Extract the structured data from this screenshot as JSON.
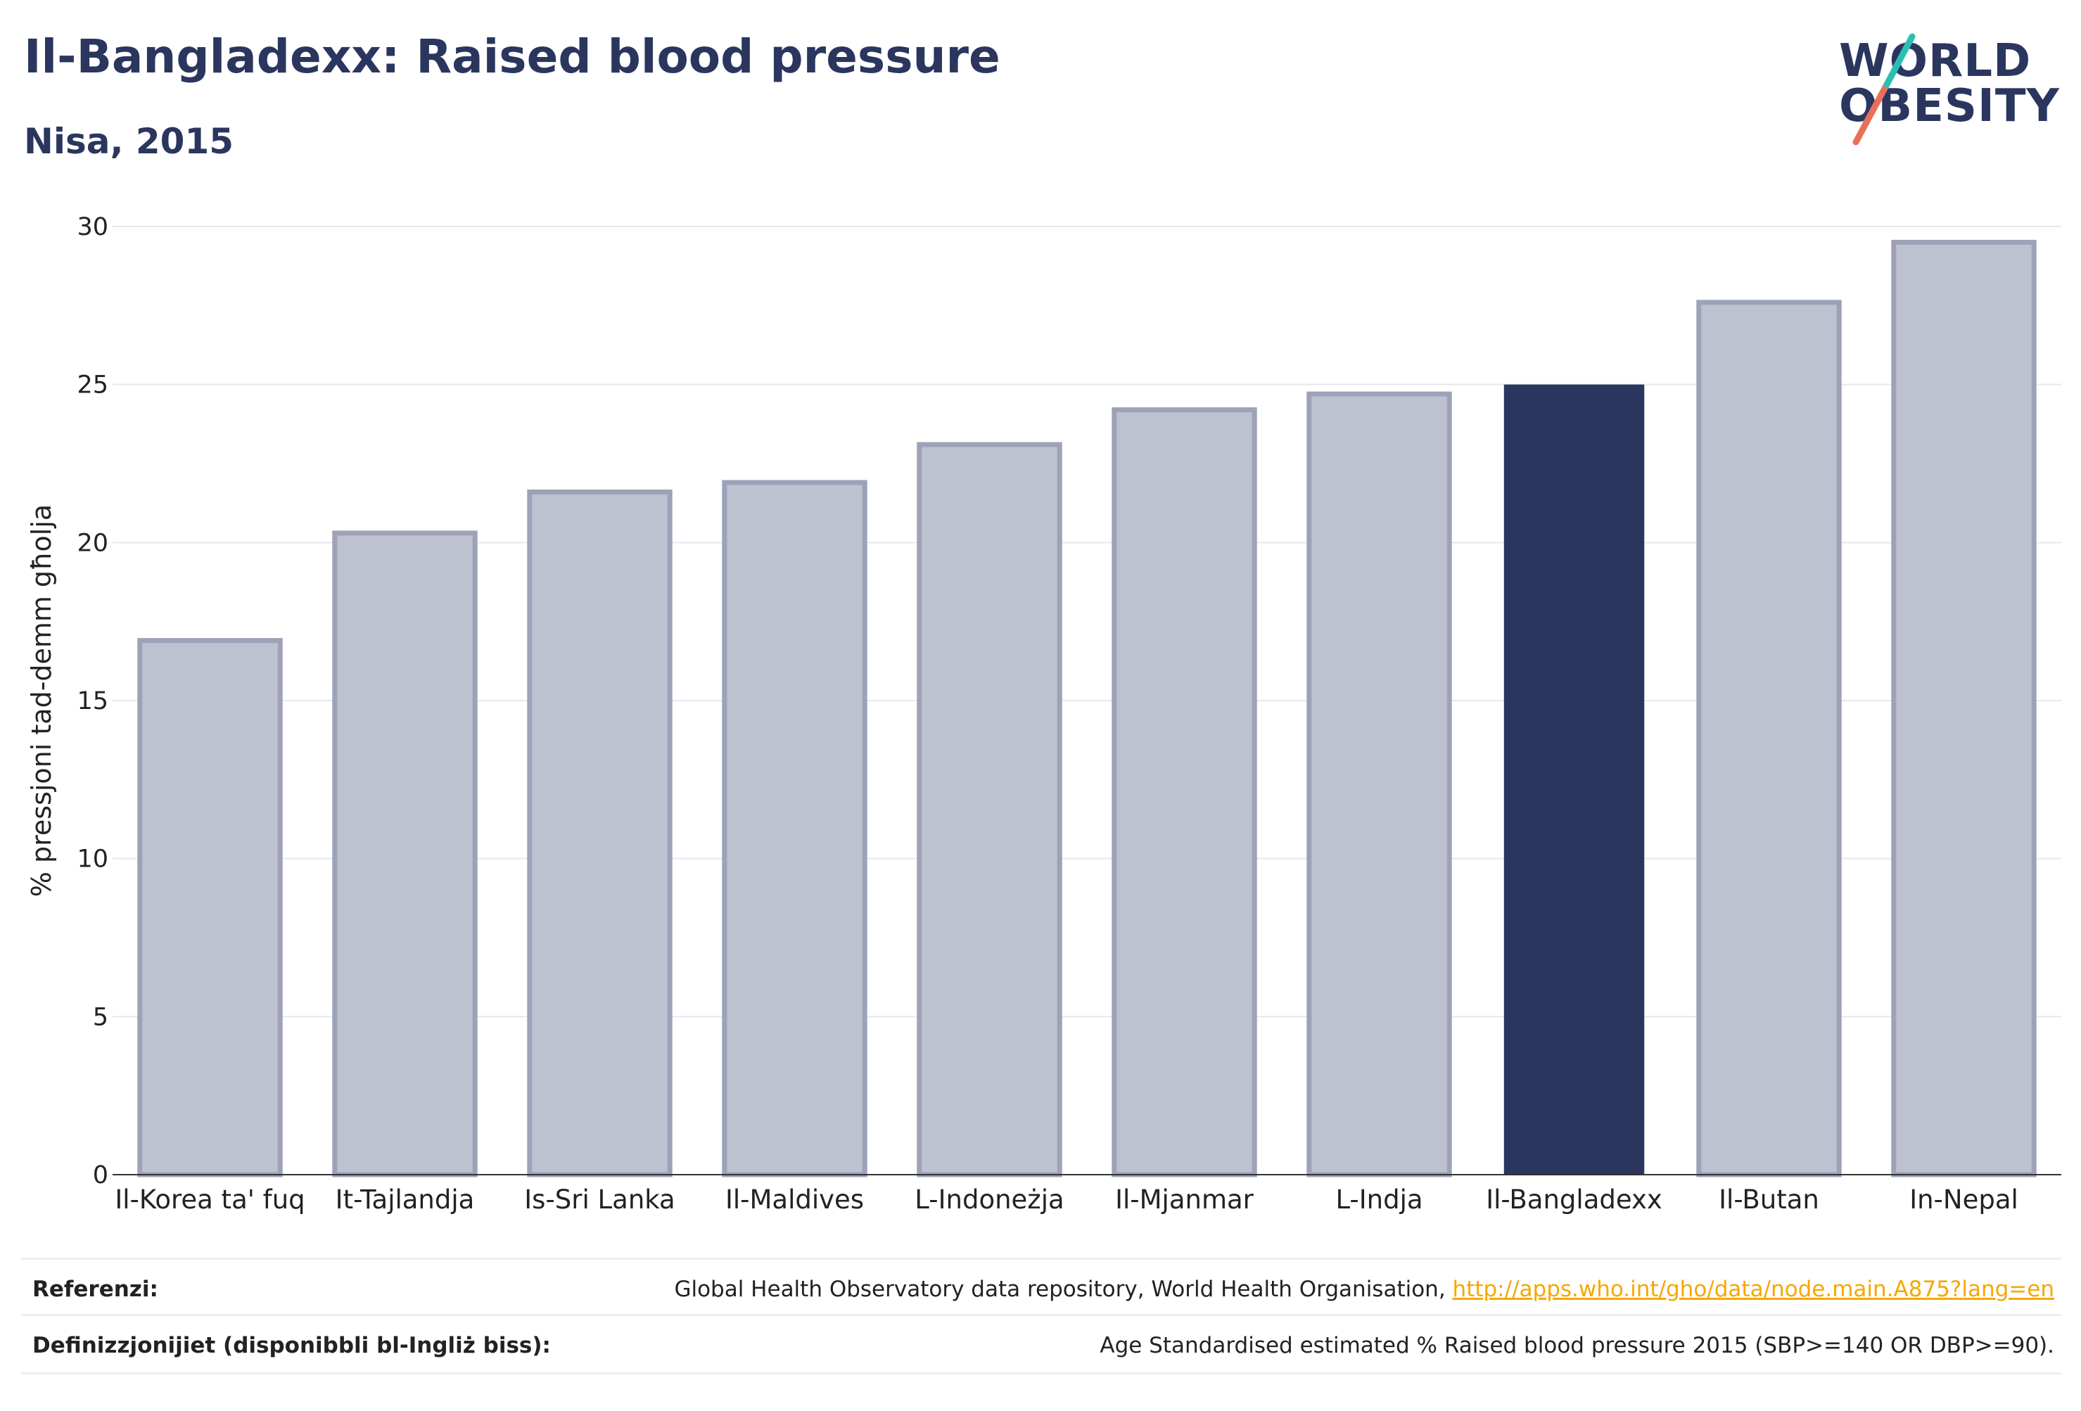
{
  "header": {
    "title": "Il-Bangladexx: Raised blood pressure",
    "subtitle": "Nisa, 2015"
  },
  "logo": {
    "line1": "WORLD",
    "line2": "OBESITY",
    "text_color": "#2a365e",
    "slash_colors": [
      "#e8705a",
      "#2bbfb3"
    ]
  },
  "chart_data": {
    "type": "bar",
    "title": "",
    "xlabel": "",
    "ylabel": "% pressjoni tad-demm għolja",
    "ylim": [
      0,
      30
    ],
    "yticks": [
      0,
      5,
      10,
      15,
      20,
      25,
      30
    ],
    "grid": true,
    "categories": [
      "Il-Korea ta' fuq",
      "It-Tajlandja",
      "Is-Sri Lanka",
      "Il-Maldives",
      "L-Indoneżja",
      "Il-Mjanmar",
      "L-Indja",
      "Il-Bangladexx",
      "Il-Butan",
      "In-Nepal"
    ],
    "values": [
      16.9,
      20.3,
      21.6,
      21.9,
      23.1,
      24.2,
      24.7,
      25.0,
      27.6,
      29.5
    ],
    "highlight": "Il-Bangladexx",
    "colors": {
      "bar": "#bec1cf",
      "bar_border": "#9da2b8",
      "highlight": "#2a365e",
      "axis_text": "#222222",
      "grid": "#e6e8ee"
    }
  },
  "footer": {
    "references_label": "Referenzi:",
    "references_text": "Global Health Observatory data repository, World Health Organisation, ",
    "references_link": "http://apps.who.int/gho/data/node.main.A875?lang=en",
    "definitions_label": "Definizzjonijiet (disponibbli bl-Ingliż biss):",
    "definitions_text": "Age Standardised estimated % Raised blood pressure 2015 (SBP>=140 OR DBP>=90)."
  }
}
